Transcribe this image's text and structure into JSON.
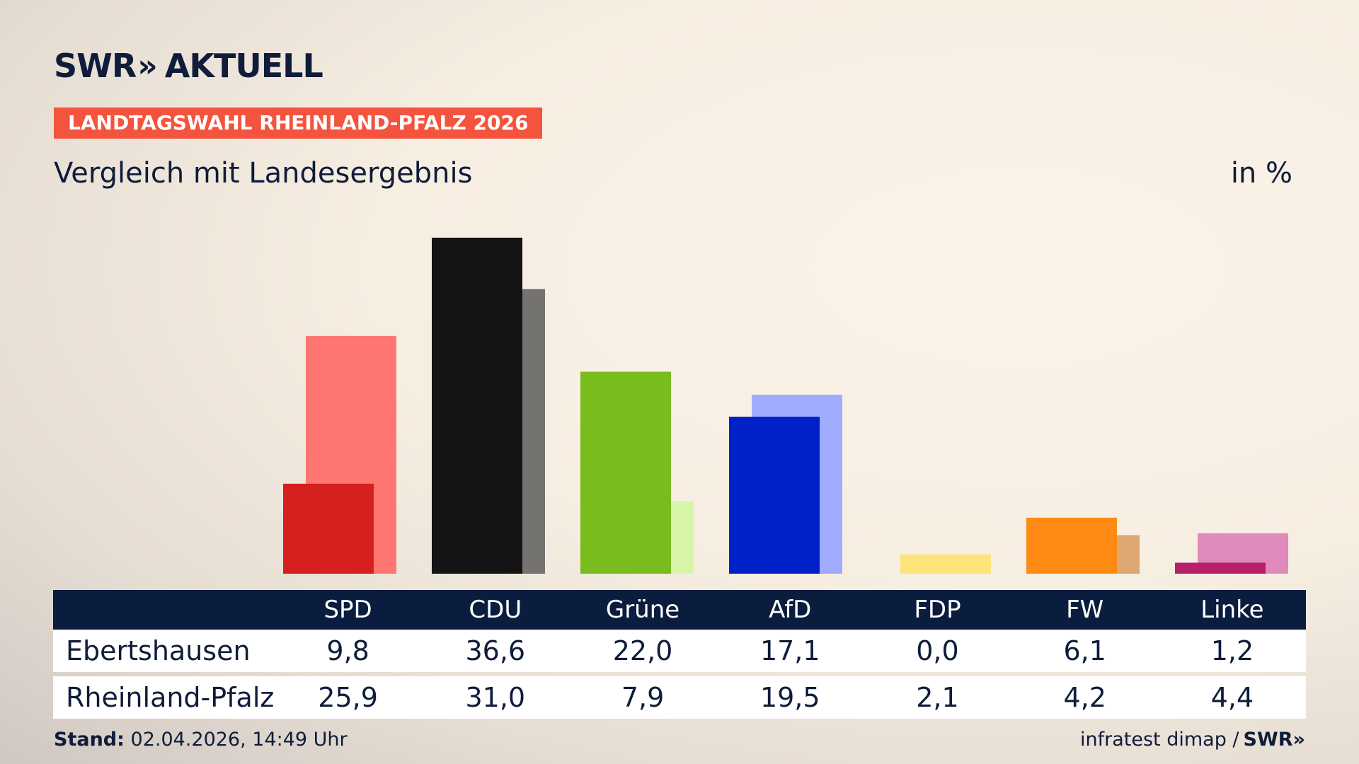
{
  "header": {
    "logo_brand": "SWR",
    "logo_chevrons": "»",
    "logo_section": "AKTUELL",
    "badge": "LANDTAGSWAHL RHEINLAND-PFALZ 2026",
    "subtitle": "Vergleich mit Landesergebnis",
    "unit": "in %"
  },
  "table": {
    "rows": [
      {
        "label": "Ebertshausen",
        "values": [
          "9,8",
          "36,6",
          "22,0",
          "17,1",
          "0,0",
          "6,1",
          "1,2"
        ]
      },
      {
        "label": "Rheinland-Pfalz",
        "values": [
          "25,9",
          "31,0",
          "7,9",
          "19,5",
          "2,1",
          "4,2",
          "4,4"
        ]
      }
    ]
  },
  "footer": {
    "stand_label": "Stand:",
    "stand_value": "02.04.2026, 14:49 Uhr",
    "source": "infratest dimap /",
    "source_logo": "SWR»"
  },
  "chart_data": {
    "type": "bar",
    "categories": [
      "SPD",
      "CDU",
      "Grüne",
      "AfD",
      "FDP",
      "FW",
      "Linke"
    ],
    "series": [
      {
        "name": "Ebertshausen",
        "values": [
          9.8,
          36.6,
          22.0,
          17.1,
          0.0,
          6.1,
          1.2
        ],
        "colors": [
          "#d61f1f",
          "#141414",
          "#78bc1e",
          "#0021c8",
          "#f9d600",
          "#ff8a14",
          "#b71f6a"
        ]
      },
      {
        "name": "Rheinland-Pfalz",
        "values": [
          25.9,
          31.0,
          7.9,
          19.5,
          2.1,
          4.2,
          4.4
        ],
        "colors": [
          "#ff7570",
          "#757370",
          "#d7f5a6",
          "#a1acff",
          "#fde479",
          "#dfa771",
          "#df8abb"
        ]
      }
    ],
    "ylim": [
      0,
      36.6
    ]
  }
}
